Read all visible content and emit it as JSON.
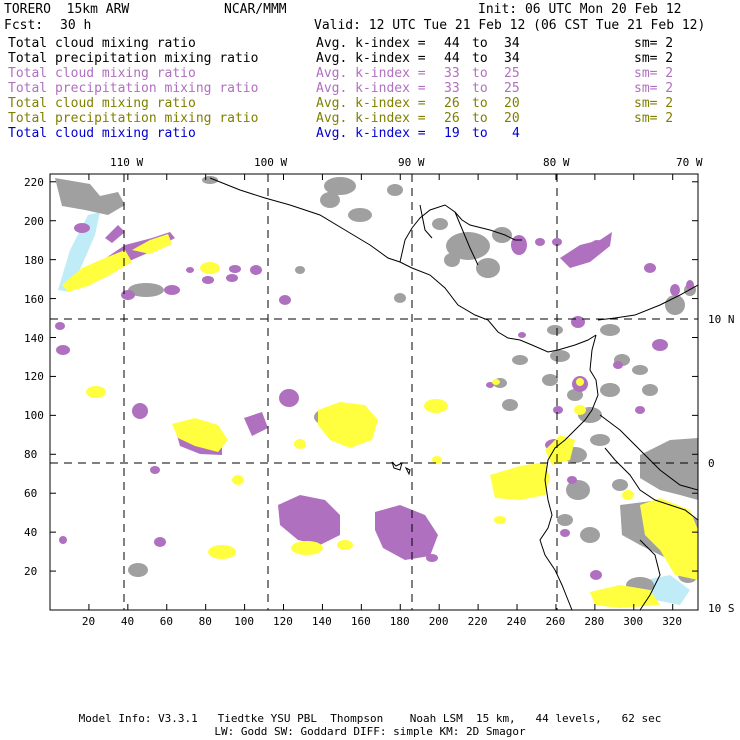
{
  "header": {
    "model": "TORERO  15km ARW",
    "org": "NCAR/MMM",
    "init": "Init: 06 UTC Mon 20 Feb 12",
    "fcst_label": "Fcst:",
    "fcst_value": "30 h",
    "valid": "Valid: 12 UTC Tue 21 Feb 12 (06 CST Tue 21 Feb 12)"
  },
  "legend": [
    {
      "field": "Total cloud mixing ratio",
      "kindex": "Avg. k-index =",
      "from": "44",
      "to_word": "to",
      "to": "34",
      "sm": "sm= 2",
      "color": "#000000"
    },
    {
      "field": "Total precipitation mixing ratio",
      "kindex": "Avg. k-index =",
      "from": "44",
      "to_word": "to",
      "to": "34",
      "sm": "sm= 2",
      "color": "#000000"
    },
    {
      "field": "Total cloud mixing ratio",
      "kindex": "Avg. k-index =",
      "from": "33",
      "to_word": "to",
      "to": "25",
      "sm": "sm= 2",
      "color": "#b070c0"
    },
    {
      "field": "Total precipitation mixing ratio",
      "kindex": "Avg. k-index =",
      "from": "33",
      "to_word": "to",
      "to": "25",
      "sm": "sm= 2",
      "color": "#b070c0"
    },
    {
      "field": "Total cloud mixing ratio",
      "kindex": "Avg. k-index =",
      "from": "26",
      "to_word": "to",
      "to": "20",
      "sm": "sm= 2",
      "color": "#808000"
    },
    {
      "field": "Total precipitation mixing ratio",
      "kindex": "Avg. k-index =",
      "from": "26",
      "to_word": "to",
      "to": "20",
      "sm": "sm= 2",
      "color": "#808000"
    },
    {
      "field": "Total cloud mixing ratio",
      "kindex": "Avg. k-index =",
      "from": "19",
      "to_word": "to",
      "to": "4",
      "sm": "",
      "color": "#0000d0"
    }
  ],
  "map": {
    "lon_labels": [
      "110 W",
      "100 W",
      "90 W",
      "80 W",
      "70 W"
    ],
    "lat_labels": [
      "10 N",
      "0",
      "10 S"
    ],
    "y_ticks": [
      "220",
      "200",
      "180",
      "160",
      "140",
      "120",
      "100",
      "80",
      "60",
      "40",
      "20"
    ],
    "x_ticks": [
      "20",
      "40",
      "60",
      "80",
      "100",
      "120",
      "140",
      "160",
      "180",
      "200",
      "220",
      "240",
      "260",
      "280",
      "300",
      "320"
    ],
    "colors": {
      "gray_cloud": "#a0a0a0",
      "purple_precip": "#b070c0",
      "yellow": "#ffff40",
      "light_blue": "#c0ecf8",
      "frame": "#000000"
    }
  },
  "footer": {
    "line1": "Model Info: V3.3.1   Tiedtke YSU PBL  Thompson    Noah LSM  15 km,   44 levels,   62 sec",
    "line2": "LW: Godd SW: Goddard DIFF: simple KM: 2D Smagor"
  }
}
